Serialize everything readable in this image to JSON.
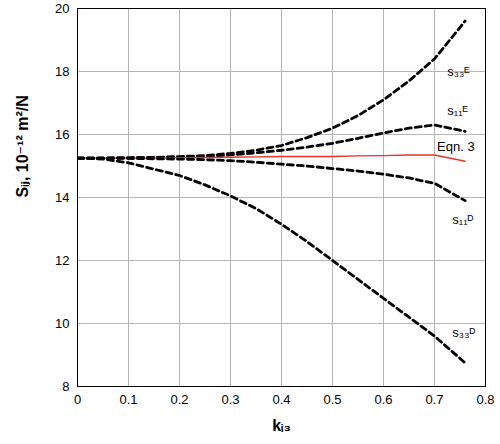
{
  "chart_data": {
    "type": "line",
    "x_label": "kᵢ₃",
    "y_label": "Sᵢⱼ, 10⁻¹² m²/N",
    "x": [
      0,
      0.05,
      0.1,
      0.15,
      0.2,
      0.25,
      0.3,
      0.35,
      0.4,
      0.45,
      0.5,
      0.55,
      0.6,
      0.65,
      0.7,
      0.76
    ],
    "series": [
      {
        "name": "s₃₃ᴱ",
        "color": "#000000",
        "line_style": "dashed",
        "values": [
          15.25,
          15.25,
          15.26,
          15.27,
          15.3,
          15.33,
          15.4,
          15.5,
          15.65,
          15.9,
          16.2,
          16.6,
          17.1,
          17.7,
          18.4,
          19.6
        ]
      },
      {
        "name": "s₁₁ᴱ",
        "color": "#000000",
        "line_style": "dashed",
        "values": [
          15.25,
          15.25,
          15.26,
          15.27,
          15.28,
          15.3,
          15.35,
          15.42,
          15.5,
          15.6,
          15.72,
          15.88,
          16.05,
          16.2,
          16.3,
          16.1
        ]
      },
      {
        "name": "Eqn. 3",
        "color": "#e8322a",
        "line_style": "solid",
        "values": [
          15.25,
          15.25,
          15.25,
          15.25,
          15.26,
          15.27,
          15.28,
          15.29,
          15.3,
          15.3,
          15.3,
          15.32,
          15.33,
          15.35,
          15.35,
          15.15
        ]
      },
      {
        "name": "s₁₁ᴰ",
        "color": "#000000",
        "line_style": "dashed",
        "values": [
          15.25,
          15.25,
          15.24,
          15.23,
          15.22,
          15.2,
          15.17,
          15.12,
          15.06,
          15.0,
          14.92,
          14.84,
          14.74,
          14.62,
          14.45,
          13.9
        ]
      },
      {
        "name": "s₃₃ᴰ",
        "color": "#000000",
        "line_style": "dashed",
        "values": [
          15.25,
          15.22,
          15.1,
          14.9,
          14.7,
          14.4,
          14.05,
          13.65,
          13.15,
          12.6,
          12.0,
          11.4,
          10.8,
          10.2,
          9.6,
          8.75
        ]
      }
    ],
    "annotations": [
      {
        "text": "s₃₃ᴱ",
        "x": 0.725,
        "y": 18.0
      },
      {
        "text": "s₁₁ᴱ",
        "x": 0.725,
        "y": 16.75
      },
      {
        "text": "Eqn. 3",
        "x": 0.705,
        "y": 15.6
      },
      {
        "text": "s₁₁ᴰ",
        "x": 0.735,
        "y": 13.3
      },
      {
        "text": "s₃₃ᴰ",
        "x": 0.735,
        "y": 9.7
      }
    ],
    "xlim": [
      0,
      0.8
    ],
    "xticks": [
      0,
      0.1,
      0.2,
      0.3,
      0.4,
      0.5,
      0.6,
      0.7,
      0.8
    ],
    "ylim": [
      8,
      20
    ],
    "yticks": [
      8,
      10,
      12,
      14,
      16,
      18,
      20
    ],
    "grid": true
  }
}
